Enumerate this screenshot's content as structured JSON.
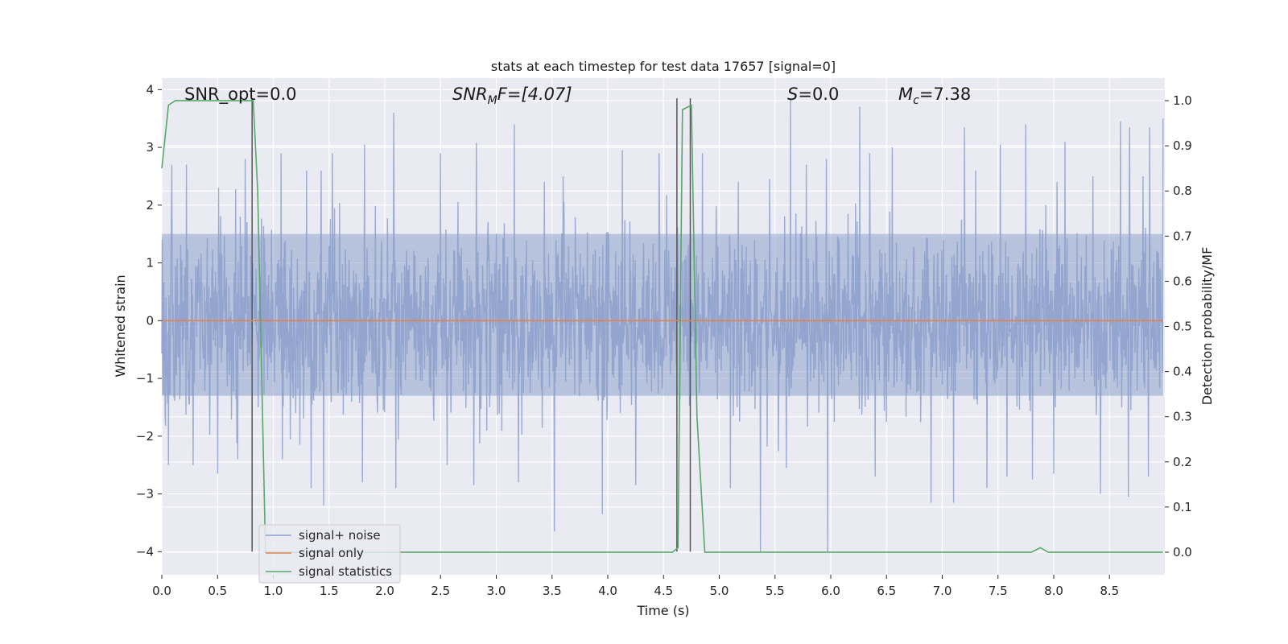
{
  "chart_data": {
    "type": "line",
    "title": "stats at each timestep for test data 17657 [signal=0]",
    "xlabel": "Time (s)",
    "ylabel": "Whitened strain",
    "y2label": "Detection probability/MF",
    "xlim": [
      0.0,
      9.0
    ],
    "ylim": [
      -4.4,
      4.2
    ],
    "y2lim": [
      -0.05,
      1.05
    ],
    "xticks": [
      "0.0",
      "0.5",
      "1.0",
      "1.5",
      "2.0",
      "2.5",
      "3.0",
      "3.5",
      "4.0",
      "4.5",
      "5.0",
      "5.5",
      "6.0",
      "6.5",
      "7.0",
      "7.5",
      "8.0",
      "8.5"
    ],
    "yticks": [
      "4",
      "3",
      "2",
      "1",
      "0",
      "−1",
      "−2",
      "−3",
      "−4"
    ],
    "y2ticks": [
      "1.0",
      "0.9",
      "0.8",
      "0.7",
      "0.6",
      "0.5",
      "0.4",
      "0.3",
      "0.2",
      "0.1",
      "0.0"
    ],
    "grid": true,
    "legend_position": "lower-left",
    "annotations": {
      "snr_opt": "SNR_opt=0.0",
      "snr_mf_base": "SNR",
      "snr_mf_sub": "M",
      "snr_mf_rest": "F=[4.07]",
      "s_sym": "S",
      "s_rest": "=0.0",
      "mc_base": "M",
      "mc_sub": "c",
      "mc_rest": "=7.38"
    },
    "series": [
      {
        "name": "signal+ noise",
        "color": "#8da0cb",
        "axis": "left",
        "description_stats": {
          "t_start": 0.0,
          "t_end": 8.98,
          "typical_range": [
            -1.6,
            1.9
          ],
          "max": 3.85,
          "min": -4.0
        }
      },
      {
        "name": "signal only",
        "color": "#dd8452",
        "axis": "left",
        "x": [
          0.0,
          8.98
        ],
        "y": [
          0.0,
          0.0
        ]
      },
      {
        "name": "signal statistics",
        "color": "#55a868",
        "axis": "right",
        "x": [
          0.0,
          0.06,
          0.12,
          0.2,
          0.3,
          0.4,
          0.5,
          0.6,
          0.7,
          0.8,
          0.82,
          0.86,
          0.93,
          1.0,
          1.5,
          2.0,
          3.0,
          4.0,
          4.5,
          4.58,
          4.63,
          4.67,
          4.75,
          4.8,
          4.87,
          4.9,
          5.5,
          6.0,
          7.0,
          7.8,
          7.88,
          7.95,
          8.5,
          8.98
        ],
        "y": [
          0.85,
          0.99,
          1.0,
          1.0,
          1.0,
          1.0,
          1.0,
          1.0,
          1.0,
          1.0,
          1.0,
          0.8,
          0.0,
          0.0,
          0.0,
          0.0,
          0.0,
          0.0,
          0.0,
          0.0,
          0.01,
          0.98,
          0.99,
          0.3,
          0.0,
          0.0,
          0.0,
          0.0,
          0.0,
          0.0,
          0.01,
          0.0,
          0.0,
          0.0
        ]
      }
    ],
    "vertical_markers": {
      "color": "#555555",
      "lines": [
        {
          "x": 0.81,
          "ymin": -4.0,
          "ymax": 3.85
        },
        {
          "x": 4.62,
          "ymin": -4.0,
          "ymax": 3.85
        },
        {
          "x": 4.74,
          "ymin": -4.0,
          "ymax": 3.85
        }
      ]
    },
    "seed_peaks_up": [
      [
        0.09,
        2.7
      ],
      [
        0.22,
        2.7
      ],
      [
        0.51,
        2.3
      ],
      [
        0.75,
        2.8
      ],
      [
        1.07,
        2.9
      ],
      [
        1.3,
        2.6
      ],
      [
        1.43,
        2.6
      ],
      [
        1.53,
        2.9
      ],
      [
        1.82,
        3.05
      ],
      [
        2.08,
        3.6
      ],
      [
        2.5,
        2.9
      ],
      [
        2.82,
        3.08
      ],
      [
        3.16,
        3.4
      ],
      [
        3.43,
        2.4
      ],
      [
        3.6,
        2.5
      ],
      [
        4.13,
        2.95
      ],
      [
        4.46,
        2.9
      ],
      [
        4.85,
        2.9
      ],
      [
        5.17,
        2.4
      ],
      [
        5.45,
        2.45
      ],
      [
        5.64,
        3.85
      ],
      [
        5.78,
        2.7
      ],
      [
        5.96,
        2.8
      ],
      [
        6.26,
        3.7
      ],
      [
        6.35,
        2.9
      ],
      [
        6.55,
        3.0
      ],
      [
        6.9,
        2.9
      ],
      [
        7.1,
        3.1
      ],
      [
        7.2,
        3.35
      ],
      [
        7.3,
        2.6
      ],
      [
        7.52,
        3.05
      ],
      [
        7.75,
        3.4
      ],
      [
        8.03,
        2.4
      ],
      [
        8.1,
        3.1
      ],
      [
        8.35,
        2.5
      ],
      [
        8.6,
        3.45
      ],
      [
        8.68,
        3.35
      ],
      [
        8.8,
        2.5
      ],
      [
        8.86,
        3.35
      ],
      [
        8.98,
        3.5
      ]
    ],
    "seed_peaks_down": [
      [
        0.06,
        -2.5
      ],
      [
        0.28,
        -2.5
      ],
      [
        0.5,
        -2.65
      ],
      [
        0.68,
        -2.4
      ],
      [
        1.08,
        -2.4
      ],
      [
        1.34,
        -2.9
      ],
      [
        1.45,
        -3.2
      ],
      [
        1.8,
        -2.8
      ],
      [
        2.1,
        -2.9
      ],
      [
        2.56,
        -2.5
      ],
      [
        2.8,
        -2.85
      ],
      [
        3.2,
        -2.8
      ],
      [
        3.52,
        -3.65
      ],
      [
        3.95,
        -3.35
      ],
      [
        4.25,
        -2.85
      ],
      [
        5.1,
        -2.9
      ],
      [
        5.37,
        -4.0
      ],
      [
        5.6,
        -2.55
      ],
      [
        5.97,
        -4.0
      ],
      [
        6.4,
        -2.7
      ],
      [
        6.9,
        -3.15
      ],
      [
        7.1,
        -3.15
      ],
      [
        7.4,
        -2.9
      ],
      [
        7.58,
        -2.7
      ],
      [
        7.81,
        -2.75
      ],
      [
        8.0,
        -2.65
      ],
      [
        8.42,
        -3.0
      ],
      [
        8.67,
        -3.05
      ],
      [
        8.85,
        -2.7
      ]
    ]
  }
}
